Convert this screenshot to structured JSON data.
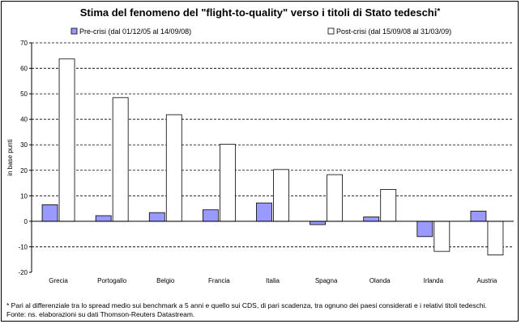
{
  "chart_data": {
    "type": "bar",
    "title": "Stima del fenomeno del \"flight-to-quality\" verso i titoli di Stato tedeschi",
    "title_mark": "*",
    "ylabel": "in base punti",
    "xlabel": "",
    "ylim": [
      -20,
      70
    ],
    "yticks": [
      -20,
      -10,
      0,
      10,
      20,
      30,
      40,
      50,
      60,
      70
    ],
    "grid": "dashed horizontal",
    "legend_position": "top",
    "categories": [
      "Grecia",
      "Portogallo",
      "Belgio",
      "Francia",
      "Italia",
      "Spagna",
      "Olanda",
      "Irlanda",
      "Austria"
    ],
    "series": [
      {
        "name": "Pre-crisi (dal 01/12/05 al 14/09/08)",
        "color": "#9999ff",
        "values": [
          6.5,
          2.2,
          3.4,
          4.5,
          7.2,
          -1.3,
          1.7,
          -6.0,
          4.0
        ]
      },
      {
        "name": "Post-crisi (dal 15/09/08 al 31/03/09)",
        "color": "#ffffff",
        "values": [
          63.7,
          48.5,
          41.8,
          30.2,
          20.3,
          18.3,
          12.5,
          -11.8,
          -13.2
        ]
      }
    ]
  },
  "footnotes": {
    "note": "* Pari al differenziale tra lo spread medio sui benchmark a 5 anni e quello sui  CDS, di pari scadenza, tra ognuno dei paesi considerati e i relativi titoli tedeschi.",
    "source": "Fonte: ns. elaborazioni su dati Thomson-Reuters Datastream."
  }
}
